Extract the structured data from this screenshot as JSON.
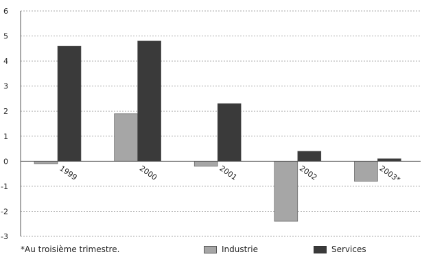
{
  "colors": {
    "industrie": "#a6a6a6",
    "services": "#3a3a3a",
    "axis": "#555555",
    "grid": "#aaaaaa"
  },
  "footnote": "*Au troisième trimestre.",
  "chart_data": {
    "type": "bar",
    "title": "",
    "xlabel": "",
    "ylabel": "",
    "categories": [
      "1999",
      "2000",
      "2001",
      "2002",
      "2003*"
    ],
    "series": [
      {
        "name": "Industrie",
        "values": [
          -0.1,
          1.9,
          -0.2,
          -2.4,
          -0.8
        ]
      },
      {
        "name": "Services",
        "values": [
          4.6,
          4.8,
          2.3,
          0.4,
          0.1
        ]
      }
    ],
    "ylim": [
      -3,
      6
    ],
    "yticks": [
      "-3",
      "-2",
      "-1",
      "0",
      "1",
      "2",
      "3",
      "4",
      "5",
      "6"
    ],
    "grid": true,
    "legend": "bottom"
  }
}
